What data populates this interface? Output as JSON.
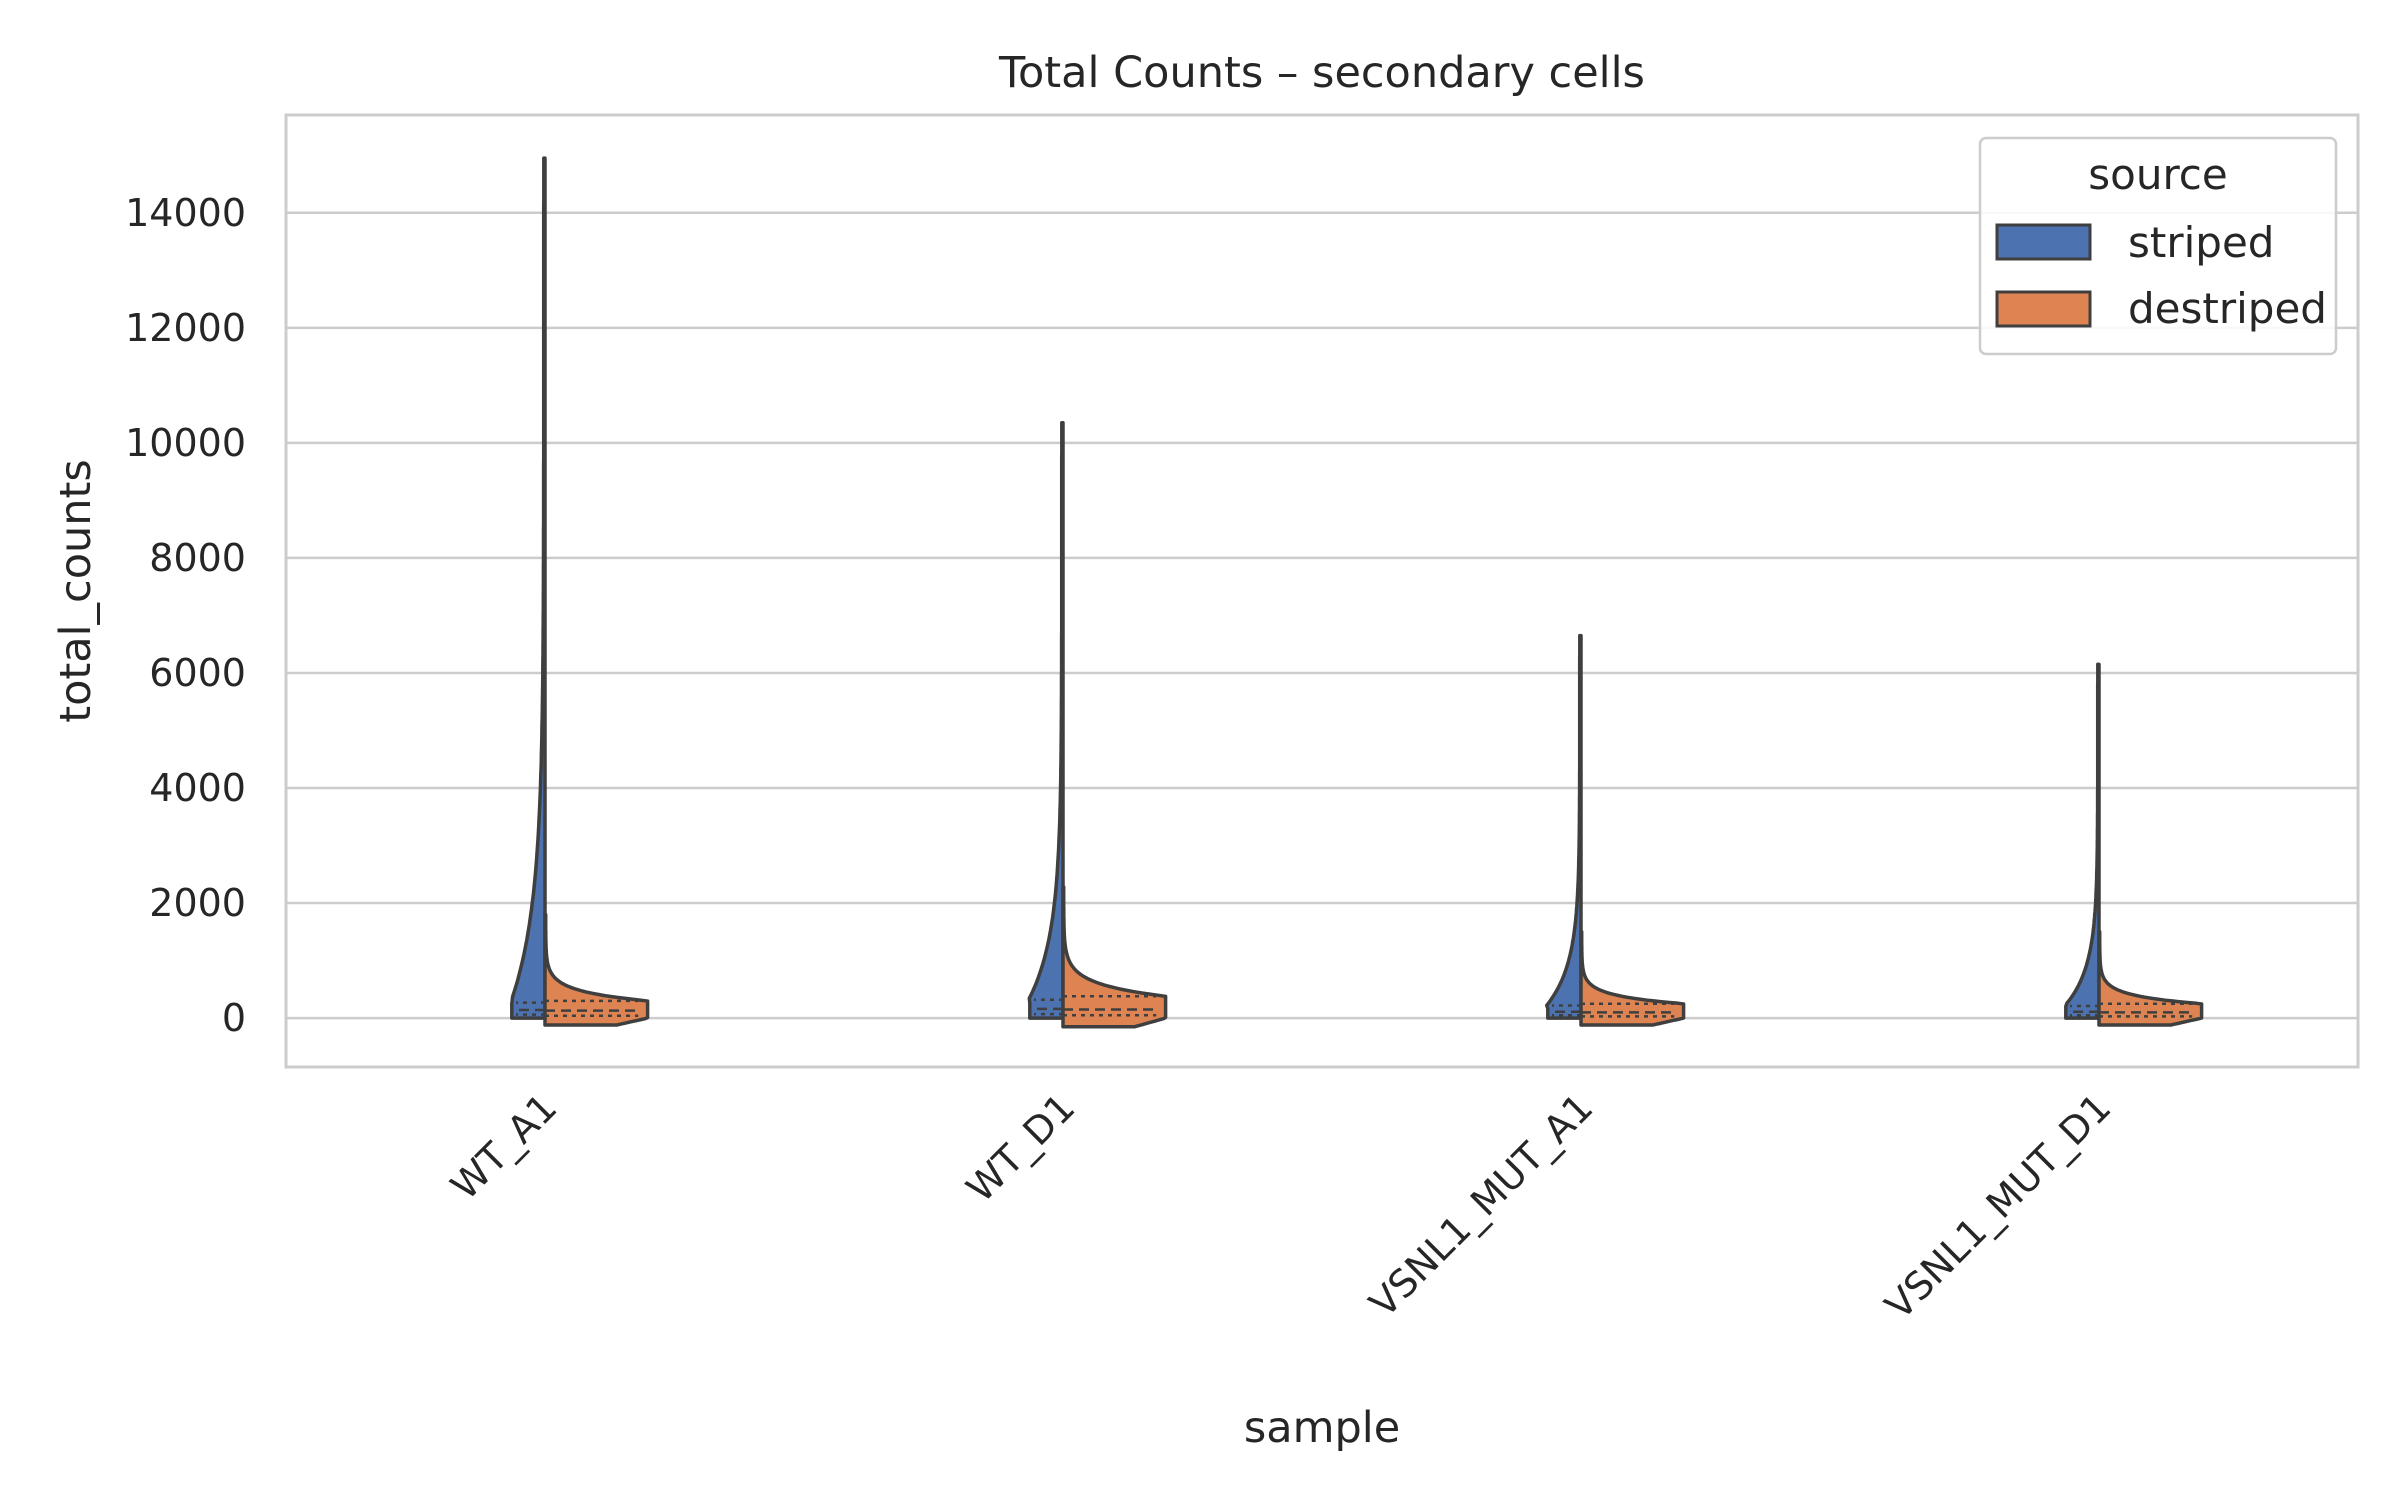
{
  "chart_data": {
    "type": "violin",
    "title": "Total Counts – secondary cells",
    "xlabel": "sample",
    "ylabel": "total_counts",
    "categories": [
      "WT_A1",
      "WT_D1",
      "VSNL1_MUT_A1",
      "VSNL1_MUT_D1"
    ],
    "ylim": [
      -850,
      15700
    ],
    "yticks": [
      0,
      2000,
      4000,
      6000,
      8000,
      10000,
      12000,
      14000
    ],
    "grid": true,
    "split": true,
    "inner": "quartile",
    "legend": {
      "title": "source",
      "placement": "top-right",
      "entries": [
        {
          "label": "striped",
          "color": "#4c72b0"
        },
        {
          "label": "destriped",
          "color": "#dd8452"
        }
      ]
    },
    "series": [
      {
        "name": "striped",
        "color": "#4c72b0",
        "values": [
          {
            "min": 0,
            "q1": 60,
            "median": 140,
            "q3": 270,
            "max": 14950
          },
          {
            "min": 0,
            "q1": 70,
            "median": 160,
            "q3": 320,
            "max": 10350
          },
          {
            "min": 0,
            "q1": 50,
            "median": 110,
            "q3": 220,
            "max": 6650
          },
          {
            "min": 0,
            "q1": 50,
            "median": 110,
            "q3": 210,
            "max": 6150
          }
        ]
      },
      {
        "name": "destriped",
        "color": "#dd8452",
        "values": [
          {
            "min": -120,
            "q1": 40,
            "median": 130,
            "q3": 300
          },
          {
            "min": -150,
            "q1": 50,
            "median": 150,
            "q3": 380
          },
          {
            "min": -120,
            "q1": 30,
            "median": 100,
            "q3": 250
          },
          {
            "min": -120,
            "q1": 30,
            "median": 100,
            "q3": 250
          }
        ]
      }
    ]
  }
}
